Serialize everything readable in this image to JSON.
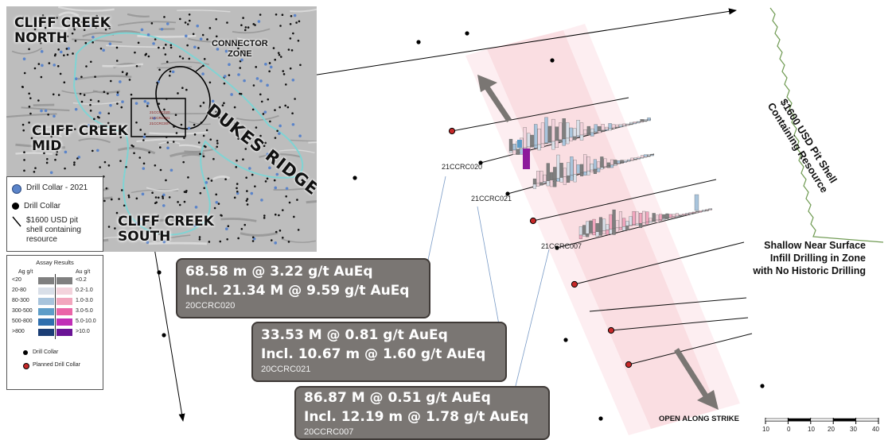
{
  "inset": {
    "labels": {
      "north": "CLIFF CREEK\nNORTH",
      "mid": "CLIFF CREEK\nMID",
      "south": "CLIFF CREEK\nSOUTH",
      "connector": "CONNECTOR\nZONE",
      "dukes": "DUKES RIDGE",
      "holes": [
        "21CCRC020",
        "21CCRC021",
        "21CCRC007"
      ]
    }
  },
  "legend": {
    "items": [
      {
        "label": "Drill Collar - 2021",
        "color": "#5b84c9"
      },
      {
        "label": "Drill Collar",
        "color": "#000000"
      },
      {
        "label": "$1600 USD pit\nshell containing\nresource",
        "color": "#000000"
      }
    ]
  },
  "assay": {
    "title": "Assay Results",
    "ag_header": "Ag g/t",
    "au_header": "Au g/t",
    "rows": [
      {
        "ag": "<20",
        "au": "<0.2",
        "ag_color": "#7f7f7f",
        "au_color": "#7f7f7f"
      },
      {
        "ag": "20-80",
        "au": "0.2-1.0",
        "ag_color": "#d9dfe8",
        "au_color": "#f3d3dc"
      },
      {
        "ag": "80-300",
        "au": "1.0-3.0",
        "ag_color": "#a8c4dc",
        "au_color": "#f2a6be"
      },
      {
        "ag": "300-500",
        "au": "3.0-5.0",
        "ag_color": "#5e9dc8",
        "au_color": "#ea65a8"
      },
      {
        "ag": "500-800",
        "au": "5.0-10.0",
        "ag_color": "#2f6fae",
        "au_color": "#c02eb6"
      },
      {
        "ag": ">800",
        "au": ">10.0",
        "ag_color": "#1b3e75",
        "au_color": "#6a1395"
      }
    ],
    "collar_label": "Drill Collar",
    "planned_label": "Planned Drill Collar",
    "collar_color": "#000000",
    "planned_color": "#c62828"
  },
  "callouts": [
    {
      "line1": "68.58 m @ 3.22 g/t AuEq",
      "line2": "Incl. 21.34 M @ 9.59 g/t AuEq",
      "hole": "20CCRC020"
    },
    {
      "line1": "33.53 M @ 0.81 g/t AuEq",
      "line2": "Incl. 10.67 m @ 1.60 g/t AuEq",
      "hole": "20CCRC021"
    },
    {
      "line1": "86.87 M @ 0.51 g/t AuEq",
      "line2": "Incl. 12.19 m @ 1.78 g/t AuEq",
      "hole": "20CCRC007"
    }
  ],
  "hole_labels": [
    "21CCRC020",
    "21CCRC021",
    "21CCRC007"
  ],
  "pit_label": "$1600 USD Pit Shell\nContaining Resource",
  "shallow_label": "Shallow Near Surface\nInfill Drilling in Zone\nwith No Historic Drilling",
  "open_label": "OPEN ALONG STRIKE",
  "scale_ticks": [
    "10",
    "0",
    "10",
    "20",
    "30",
    "40"
  ],
  "colors": {
    "callout_bg": "#7a7673",
    "pit_shell": "#6f9a52",
    "trend_band": "#f6c8cf",
    "collar_planned": "#c62828",
    "drill_2021": "#5b84c9",
    "resource_outline": "#7fd4d4"
  }
}
